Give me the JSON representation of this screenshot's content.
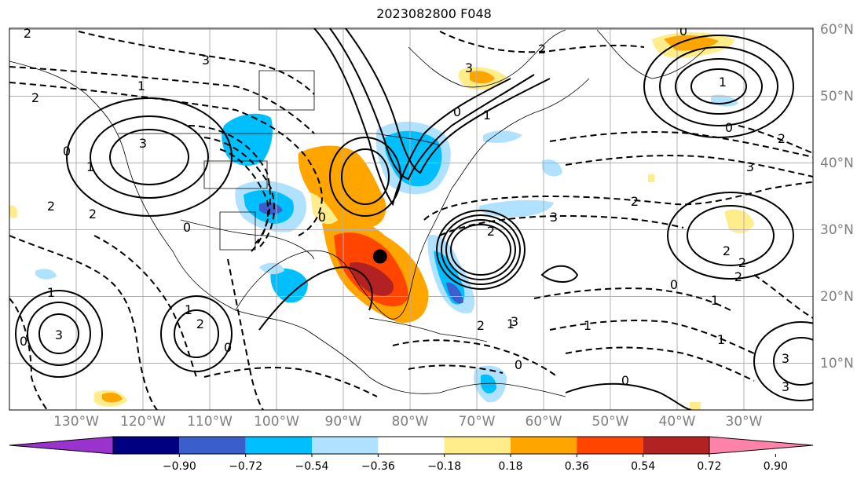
{
  "title": "2023082800 F048",
  "longitude_labels": [
    "130°W",
    "120°W",
    "110°W",
    "100°W",
    "90°W",
    "80°W",
    "70°W",
    "60°W",
    "50°W",
    "40°W",
    "30°W"
  ],
  "latitude_labels": [
    "60°N",
    "50°N",
    "40°N",
    "30°N",
    "20°N",
    "10°N"
  ],
  "colorbar": {
    "ticks": [
      "−0.90",
      "−0.72",
      "−0.54",
      "−0.36",
      "−0.18",
      "0.18",
      "0.36",
      "0.54",
      "0.72",
      "0.90"
    ],
    "colors": [
      "#9a32cd",
      "#000080",
      "#3a5fcd",
      "#00bfff",
      "#b0e2ff",
      "#ffffff",
      "#ffec8b",
      "#ffa500",
      "#ff4500",
      "#b22222",
      "#ff82ab"
    ]
  },
  "contour_labels": [
    "2",
    "1",
    "2",
    "3",
    "0",
    "1",
    "2",
    "3",
    "0",
    "2",
    "1",
    "2",
    "3",
    "0",
    "1",
    "3",
    "2",
    "1",
    "0",
    "2",
    "3",
    "2",
    "1",
    "0",
    "2",
    "3",
    "0",
    "2",
    "2",
    "1",
    "3",
    "3",
    "0",
    "1",
    "3",
    "0",
    "2",
    "1",
    "0",
    "0",
    "2",
    "1",
    "0"
  ],
  "marker": {
    "name": "black-dot",
    "lon": -84.5,
    "lat": 26.0
  }
}
